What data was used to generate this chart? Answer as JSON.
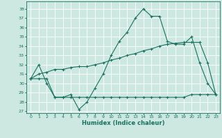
{
  "xlabel": "Humidex (Indice chaleur)",
  "background_color": "#cce8e0",
  "plot_bg_color": "#cce8e0",
  "line_color": "#1a7060",
  "grid_color": "#ffffff",
  "ylim": [
    26.8,
    38.8
  ],
  "yticks": [
    27,
    28,
    29,
    30,
    31,
    32,
    33,
    34,
    35,
    36,
    37,
    38
  ],
  "xlim": [
    -0.5,
    23.5
  ],
  "xticks": [
    0,
    1,
    2,
    3,
    4,
    5,
    6,
    7,
    8,
    9,
    10,
    11,
    12,
    13,
    14,
    15,
    16,
    17,
    18,
    19,
    20,
    21,
    22,
    23
  ],
  "line1_x": [
    0,
    1,
    2,
    3,
    4,
    5,
    6,
    7,
    8,
    9,
    10,
    11,
    12,
    13,
    14,
    15,
    16,
    17,
    18,
    19,
    20,
    21,
    22,
    23
  ],
  "line1_y": [
    30.5,
    32.0,
    30.0,
    28.5,
    28.5,
    28.8,
    27.2,
    28.0,
    29.5,
    31.0,
    33.0,
    34.5,
    35.5,
    37.0,
    38.0,
    37.2,
    37.2,
    34.5,
    34.2,
    34.2,
    35.0,
    32.2,
    30.0,
    28.8
  ],
  "line2_x": [
    0,
    1,
    2,
    3,
    4,
    5,
    6,
    7,
    8,
    9,
    10,
    11,
    12,
    13,
    14,
    15,
    16,
    17,
    18,
    19,
    20,
    21,
    22,
    23
  ],
  "line2_y": [
    30.5,
    31.0,
    31.2,
    31.5,
    31.5,
    31.7,
    31.8,
    31.8,
    32.0,
    32.2,
    32.5,
    32.7,
    33.0,
    33.2,
    33.5,
    33.7,
    34.0,
    34.2,
    34.3,
    34.4,
    34.4,
    34.4,
    32.2,
    28.8
  ],
  "line3_x": [
    0,
    1,
    2,
    3,
    4,
    5,
    6,
    7,
    8,
    9,
    10,
    11,
    12,
    13,
    14,
    15,
    16,
    17,
    18,
    19,
    20,
    21,
    22,
    23
  ],
  "line3_y": [
    30.5,
    30.5,
    30.5,
    28.5,
    28.5,
    28.5,
    28.5,
    28.5,
    28.5,
    28.5,
    28.5,
    28.5,
    28.5,
    28.5,
    28.5,
    28.5,
    28.5,
    28.5,
    28.5,
    28.5,
    28.8,
    28.8,
    28.8,
    28.8
  ]
}
